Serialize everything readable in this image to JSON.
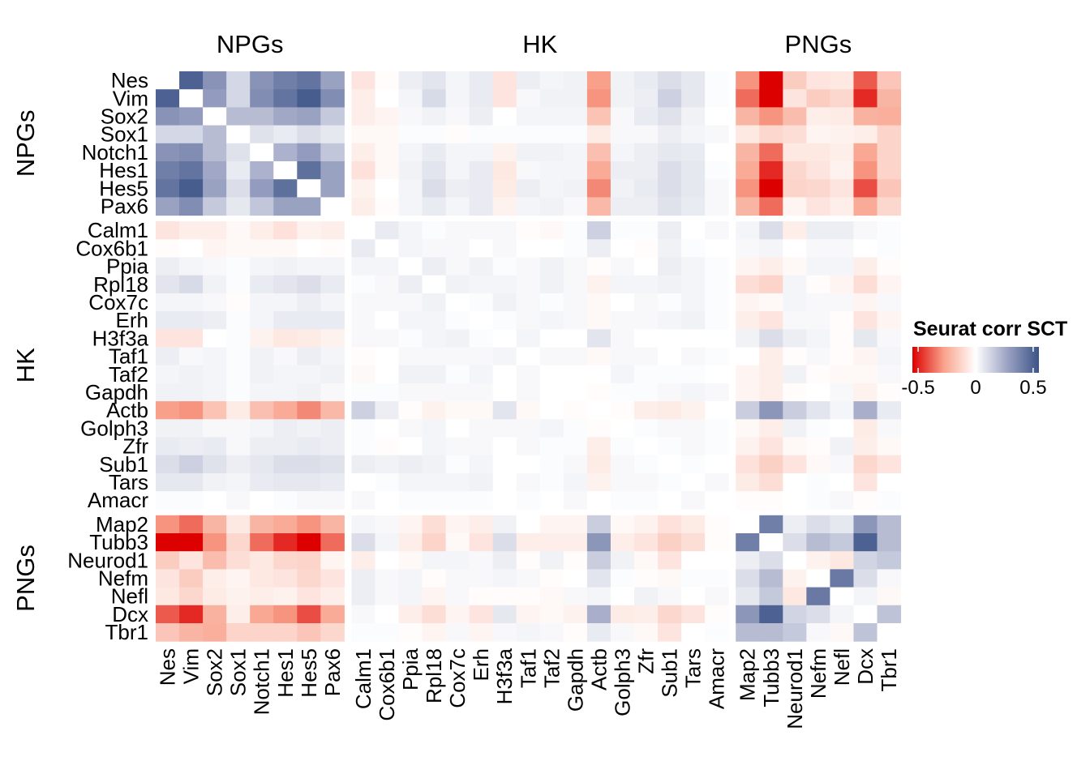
{
  "chart_data": {
    "type": "heatmap",
    "title": "",
    "genes": [
      "Nes",
      "Vim",
      "Sox2",
      "Sox1",
      "Notch1",
      "Hes1",
      "Hes5",
      "Pax6",
      "Calm1",
      "Cox6b1",
      "Ppia",
      "Rpl18",
      "Cox7c",
      "Erh",
      "H3f3a",
      "Taf1",
      "Taf2",
      "Gapdh",
      "Actb",
      "Golph3",
      "Zfr",
      "Sub1",
      "Tars",
      "Amacr",
      "Map2",
      "Tubb3",
      "Neurod1",
      "Nefm",
      "Nefl",
      "Dcx",
      "Tbr1"
    ],
    "groups": [
      {
        "name": "NPGs",
        "size": 8
      },
      {
        "name": "HK",
        "size": 16
      },
      {
        "name": "PNGs",
        "size": 7
      }
    ],
    "legend": {
      "title": "Seurat corr SCT",
      "ticks": [
        "-0.5",
        "0",
        "0.5"
      ],
      "tick_values": [
        -0.5,
        0,
        0.5
      ],
      "range": [
        -0.55,
        0.55
      ],
      "low_color": "#DD0000",
      "mid_color": "#FFFFFF",
      "high_color": "#3B5487",
      "placement": "right"
    },
    "diagonal": "blank",
    "matrix": [
      [
        null,
        0.5,
        0.33,
        0.12,
        0.33,
        0.4,
        0.44,
        0.28,
        -0.08,
        -0.01,
        0.05,
        0.08,
        0.03,
        0.06,
        -0.08,
        0.05,
        0.03,
        0.04,
        -0.28,
        0.04,
        0.06,
        0.1,
        0.07,
        0.01,
        -0.3,
        -0.55,
        -0.15,
        -0.08,
        -0.07,
        -0.4,
        -0.17
      ],
      [
        0.5,
        null,
        0.3,
        0.12,
        0.35,
        0.44,
        0.52,
        0.35,
        -0.05,
        0,
        0.03,
        0.11,
        0.03,
        0.06,
        -0.08,
        0.02,
        0.04,
        0.04,
        -0.3,
        0.04,
        0.05,
        0.14,
        0.07,
        0.01,
        -0.37,
        -0.55,
        -0.08,
        -0.15,
        -0.12,
        -0.48,
        -0.22
      ],
      [
        0.33,
        0.3,
        null,
        0.2,
        0.2,
        0.26,
        0.28,
        0.16,
        -0.05,
        -0.03,
        0.02,
        0.04,
        0.02,
        0.05,
        0,
        0.03,
        0.03,
        0.03,
        -0.18,
        0.02,
        0.06,
        0.09,
        0.04,
        0,
        -0.22,
        -0.3,
        -0.2,
        -0.05,
        -0.06,
        -0.23,
        -0.24
      ],
      [
        0.12,
        0.12,
        0.2,
        null,
        0.09,
        0.06,
        0.1,
        0.07,
        -0.02,
        -0.02,
        0.01,
        0.01,
        -0.01,
        0.01,
        0.01,
        0.01,
        0.01,
        0.01,
        -0.06,
        0.02,
        0.02,
        0.05,
        0.03,
        0.02,
        -0.07,
        -0.12,
        -0.1,
        -0.03,
        -0.04,
        -0.05,
        -0.13
      ],
      [
        0.33,
        0.35,
        0.2,
        0.09,
        null,
        0.23,
        0.3,
        0.17,
        -0.05,
        -0.02,
        0.03,
        0.06,
        0.03,
        0.03,
        -0.04,
        0.04,
        0.04,
        0.03,
        -0.19,
        0.03,
        0.05,
        0.07,
        0.06,
        0,
        -0.22,
        -0.37,
        -0.07,
        -0.07,
        -0.05,
        -0.26,
        -0.13
      ],
      [
        0.4,
        0.44,
        0.26,
        0.06,
        0.23,
        null,
        0.45,
        0.28,
        -0.09,
        -0.02,
        0.04,
        0.08,
        0.03,
        0.06,
        -0.07,
        0.02,
        0.03,
        0.03,
        -0.25,
        0.05,
        0.05,
        0.1,
        0.07,
        0.01,
        -0.25,
        -0.48,
        -0.12,
        -0.08,
        -0.04,
        -0.3,
        -0.13
      ],
      [
        0.44,
        0.52,
        0.28,
        0.1,
        0.3,
        0.45,
        null,
        0.28,
        -0.04,
        0,
        0.03,
        0.1,
        0.05,
        0.06,
        -0.06,
        0.05,
        0.03,
        0.04,
        -0.32,
        0.04,
        0.06,
        0.1,
        0.07,
        0.02,
        -0.3,
        -0.55,
        -0.13,
        -0.12,
        -0.08,
        -0.42,
        -0.17
      ],
      [
        0.28,
        0.35,
        0.16,
        0.07,
        0.17,
        0.28,
        0.28,
        null,
        -0.05,
        -0.01,
        0.03,
        0.06,
        0.03,
        0.06,
        -0.04,
        0.03,
        0.04,
        0.02,
        -0.21,
        0.05,
        0.05,
        0.09,
        0.06,
        0.02,
        -0.22,
        -0.37,
        -0.03,
        -0.08,
        -0.05,
        -0.25,
        -0.12
      ],
      [
        -0.08,
        -0.05,
        -0.05,
        -0.02,
        -0.05,
        -0.09,
        -0.04,
        -0.05,
        null,
        0.06,
        0.03,
        0.01,
        0.02,
        0.02,
        0.02,
        -0.01,
        -0.02,
        0.01,
        0.14,
        0.01,
        0.01,
        0.05,
        0,
        0.02,
        0.03,
        0.1,
        -0.05,
        0.05,
        0.05,
        0.02,
        0.01
      ],
      [
        -0.01,
        0,
        -0.03,
        -0.02,
        -0.02,
        -0.02,
        0,
        -0.01,
        0.06,
        null,
        0.03,
        0.02,
        0.02,
        0,
        0.02,
        0,
        0,
        0.01,
        0.05,
        0,
        -0.01,
        0.04,
        0.01,
        0,
        0.02,
        0.03,
        0,
        0.02,
        0.02,
        0,
        0.01
      ],
      [
        0.05,
        0.03,
        0.02,
        0.01,
        0.03,
        0.04,
        0.03,
        0.03,
        0.03,
        0.03,
        null,
        0.05,
        0.02,
        0.04,
        0.01,
        0.02,
        0.04,
        0.02,
        -0.01,
        0.02,
        0,
        0.05,
        0.03,
        0.01,
        -0.03,
        -0.05,
        -0.02,
        0.03,
        0.03,
        -0.05,
        -0.01
      ],
      [
        0.08,
        0.11,
        0.04,
        0.01,
        0.06,
        0.08,
        0.1,
        0.06,
        0.01,
        0.02,
        0.05,
        null,
        0.04,
        0.03,
        0.03,
        0.02,
        0.04,
        0.02,
        -0.04,
        0.03,
        0.03,
        0.04,
        0.03,
        0.01,
        -0.1,
        -0.13,
        0.03,
        -0.01,
        -0.03,
        -0.1,
        -0.03
      ],
      [
        0.03,
        0.03,
        0.02,
        -0.01,
        0.03,
        0.03,
        0.05,
        0.03,
        0.02,
        0.02,
        0.02,
        0.04,
        null,
        0.01,
        0.04,
        0.02,
        0.01,
        0.02,
        -0.02,
        0,
        0.02,
        0.01,
        0.03,
        0.01,
        -0.03,
        -0.02,
        0.03,
        0.02,
        0.02,
        -0.03,
        0.02
      ],
      [
        0.06,
        0.06,
        0.05,
        0.01,
        0.03,
        0.06,
        0.06,
        0.06,
        0.02,
        0,
        0.03,
        0.03,
        0.01,
        null,
        0.01,
        0.02,
        0.03,
        0.02,
        -0.02,
        0.02,
        0.02,
        0.03,
        0.04,
        0.01,
        -0.05,
        -0.08,
        0.02,
        0.02,
        -0.01,
        -0.08,
        -0.03
      ],
      [
        -0.08,
        -0.08,
        0,
        0.01,
        -0.04,
        -0.07,
        -0.06,
        -0.04,
        0.02,
        0.02,
        0.01,
        0.03,
        0.04,
        0.01,
        null,
        0.03,
        0,
        0,
        0.08,
        0.02,
        0,
        0,
        0,
        0,
        0.04,
        0.1,
        0.05,
        0.03,
        -0.01,
        0.07,
        0.02
      ],
      [
        0.05,
        0.02,
        0.03,
        0.01,
        0.04,
        0.02,
        0.05,
        0.03,
        -0.01,
        0,
        0.02,
        0.02,
        0.02,
        0.02,
        0.03,
        null,
        0.02,
        0.02,
        -0.02,
        0.02,
        0.02,
        0,
        0.02,
        0.01,
        0,
        -0.05,
        -0.01,
        0.02,
        -0.01,
        -0.03,
        0.03
      ],
      [
        0.03,
        0.04,
        0.03,
        0.01,
        0.04,
        0.03,
        0.03,
        0.04,
        -0.02,
        0,
        0.04,
        0.04,
        0.01,
        0.03,
        0,
        0.02,
        null,
        0,
        0,
        0.03,
        0.01,
        0.01,
        0.01,
        0,
        -0.03,
        -0.05,
        0.04,
        -0.01,
        -0.02,
        -0.02,
        0.02
      ],
      [
        0.04,
        0.04,
        0.03,
        0.01,
        0.03,
        0.03,
        0.04,
        0.02,
        0.01,
        0.01,
        0.02,
        0.02,
        0.02,
        0.02,
        0,
        0.02,
        0,
        null,
        -0.01,
        0.01,
        0.01,
        0.02,
        0.03,
        0.02,
        -0.03,
        -0.05,
        -0.01,
        0,
        0.02,
        -0.04,
        -0.01
      ],
      [
        -0.28,
        -0.3,
        -0.18,
        -0.06,
        -0.19,
        -0.25,
        -0.32,
        -0.21,
        0.14,
        0.05,
        -0.01,
        -0.04,
        -0.02,
        -0.02,
        0.08,
        -0.02,
        0,
        -0.01,
        null,
        -0.01,
        -0.05,
        -0.06,
        -0.04,
        0,
        0.15,
        0.32,
        0.15,
        0.08,
        0.03,
        0.24,
        0.06
      ],
      [
        0.04,
        0.04,
        0.02,
        0.02,
        0.03,
        0.05,
        0.04,
        0.05,
        0.01,
        0,
        0.02,
        0.03,
        0,
        0.02,
        0.02,
        0.02,
        0.03,
        0.01,
        -0.01,
        null,
        0.01,
        0.02,
        0.02,
        0.01,
        -0.02,
        -0.05,
        0.04,
        0.01,
        0,
        -0.06,
        0.02
      ],
      [
        0.06,
        0.05,
        0.06,
        0.02,
        0.05,
        0.05,
        0.06,
        0.05,
        0.01,
        -0.01,
        0,
        0.03,
        0.02,
        0.02,
        0,
        0.02,
        0.01,
        0.01,
        -0.05,
        0.01,
        null,
        0.01,
        0.02,
        0.01,
        -0.04,
        -0.08,
        -0.02,
        -0.01,
        0.04,
        -0.05,
        -0.02
      ],
      [
        0.1,
        0.14,
        0.09,
        0.05,
        0.07,
        0.1,
        0.1,
        0.09,
        0.05,
        0.04,
        0.05,
        0.04,
        0.01,
        0.03,
        0,
        0,
        0.01,
        0.02,
        -0.06,
        0.02,
        0.01,
        null,
        0.01,
        0,
        -0.09,
        -0.14,
        -0.08,
        -0.02,
        0.02,
        -0.12,
        -0.08
      ],
      [
        0.07,
        0.07,
        0.04,
        0.03,
        0.06,
        0.07,
        0.07,
        0.06,
        0,
        0.01,
        0.03,
        0.03,
        0.03,
        0.04,
        0,
        0.02,
        0.01,
        0.03,
        -0.04,
        0.02,
        0.02,
        0.01,
        null,
        0.02,
        -0.06,
        -0.1,
        0,
        0.01,
        0,
        -0.08,
        0
      ],
      [
        0.01,
        0.01,
        0,
        0.02,
        0,
        0.01,
        0.02,
        0.02,
        0.02,
        0,
        0.01,
        0.01,
        0.01,
        0.01,
        0,
        0.01,
        0,
        0.02,
        0,
        0.01,
        0.01,
        0,
        0.02,
        null,
        -0.01,
        -0.01,
        0,
        0.01,
        0.02,
        -0.01,
        0.01
      ],
      [
        -0.3,
        -0.37,
        -0.22,
        -0.07,
        -0.22,
        -0.25,
        -0.3,
        -0.22,
        0.03,
        0.02,
        -0.03,
        -0.1,
        -0.03,
        -0.05,
        0.04,
        0,
        -0.03,
        -0.03,
        0.15,
        -0.02,
        -0.04,
        -0.09,
        -0.06,
        -0.01,
        null,
        0.4,
        0.05,
        0.1,
        0.07,
        0.32,
        0.2
      ],
      [
        -0.55,
        -0.55,
        -0.3,
        -0.12,
        -0.37,
        -0.48,
        -0.55,
        -0.37,
        0.1,
        0.03,
        -0.05,
        -0.13,
        -0.02,
        -0.08,
        0.1,
        -0.05,
        -0.05,
        -0.05,
        0.32,
        -0.05,
        -0.08,
        -0.14,
        -0.1,
        -0.01,
        0.4,
        null,
        0.1,
        0.2,
        0.16,
        0.5,
        0.2
      ],
      [
        -0.15,
        -0.08,
        -0.2,
        -0.1,
        -0.07,
        -0.12,
        -0.13,
        -0.03,
        -0.05,
        0,
        -0.02,
        0.03,
        0.03,
        0.02,
        0.05,
        -0.01,
        0.04,
        -0.01,
        0.15,
        0.04,
        -0.02,
        -0.08,
        0,
        0,
        0.05,
        0.1,
        null,
        -0.04,
        -0.07,
        0.13,
        0.16
      ],
      [
        -0.08,
        -0.15,
        -0.05,
        -0.03,
        -0.07,
        -0.08,
        -0.12,
        -0.08,
        0.05,
        0.02,
        0.03,
        -0.01,
        0.02,
        0.02,
        0.03,
        0.02,
        -0.01,
        0,
        0.08,
        0.01,
        -0.01,
        -0.02,
        0.01,
        0.01,
        0.1,
        0.2,
        -0.04,
        null,
        0.42,
        0.1,
        0.02
      ],
      [
        -0.07,
        -0.12,
        -0.06,
        -0.04,
        -0.05,
        -0.04,
        -0.08,
        -0.05,
        0.05,
        0.02,
        0.03,
        -0.03,
        0.02,
        -0.01,
        -0.01,
        -0.01,
        -0.02,
        0.02,
        0.03,
        0,
        0.04,
        0.02,
        0,
        0.02,
        0.07,
        0.16,
        -0.07,
        0.42,
        null,
        0.03,
        -0.02
      ],
      [
        -0.4,
        -0.48,
        -0.23,
        -0.05,
        -0.26,
        -0.3,
        -0.42,
        -0.25,
        0.02,
        0,
        -0.05,
        -0.1,
        -0.03,
        -0.08,
        0.07,
        -0.03,
        -0.02,
        -0.04,
        0.24,
        -0.06,
        -0.05,
        -0.12,
        -0.08,
        -0.01,
        0.32,
        0.5,
        0.13,
        0.1,
        0.03,
        null,
        0.18
      ],
      [
        -0.17,
        -0.22,
        -0.24,
        -0.13,
        -0.13,
        -0.13,
        -0.17,
        -0.12,
        0.01,
        0.01,
        -0.01,
        -0.03,
        0.02,
        -0.03,
        0.02,
        0.03,
        0.02,
        -0.01,
        0.06,
        0.02,
        -0.02,
        -0.08,
        0,
        0.01,
        0.2,
        0.2,
        0.16,
        0.02,
        -0.02,
        0.18,
        null
      ]
    ]
  }
}
